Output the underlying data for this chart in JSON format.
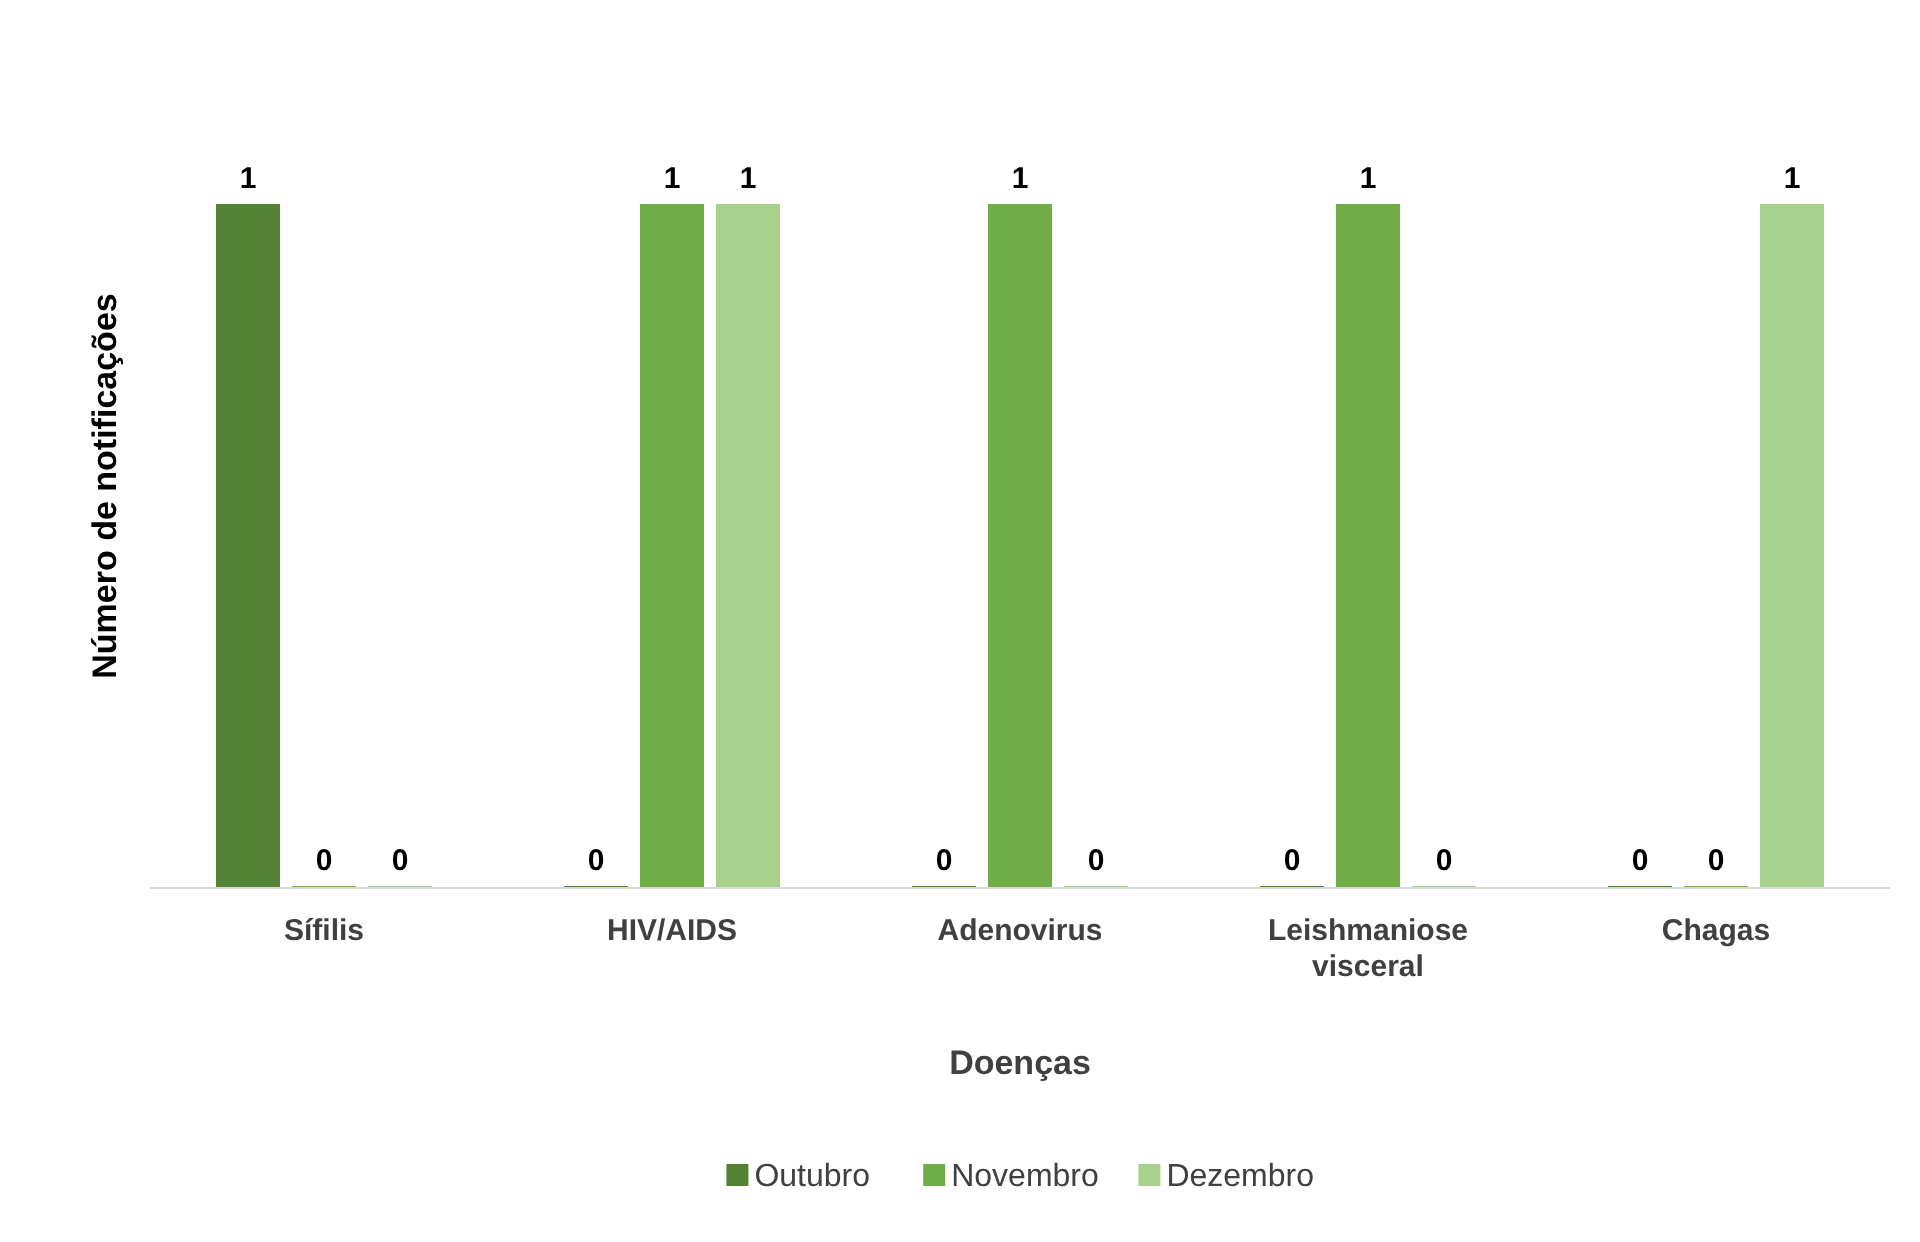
{
  "chart_data": {
    "type": "bar",
    "xlabel": "Doenças",
    "ylabel": "Número de notificações",
    "categories": [
      "Sífilis",
      "HIV/AIDS",
      "Adenovirus",
      "Leishmaniose visceral",
      "Chagas"
    ],
    "series": [
      {
        "name": "Outubro",
        "color": "#548235",
        "values": [
          1,
          0,
          0,
          0,
          0
        ]
      },
      {
        "name": "Novembro",
        "color": "#70ad47",
        "values": [
          0,
          1,
          1,
          1,
          0
        ]
      },
      {
        "name": "Dezembro",
        "color": "#a9d18e",
        "values": [
          0,
          1,
          0,
          0,
          1
        ]
      }
    ],
    "data_labels": true,
    "legend": "bottom"
  }
}
